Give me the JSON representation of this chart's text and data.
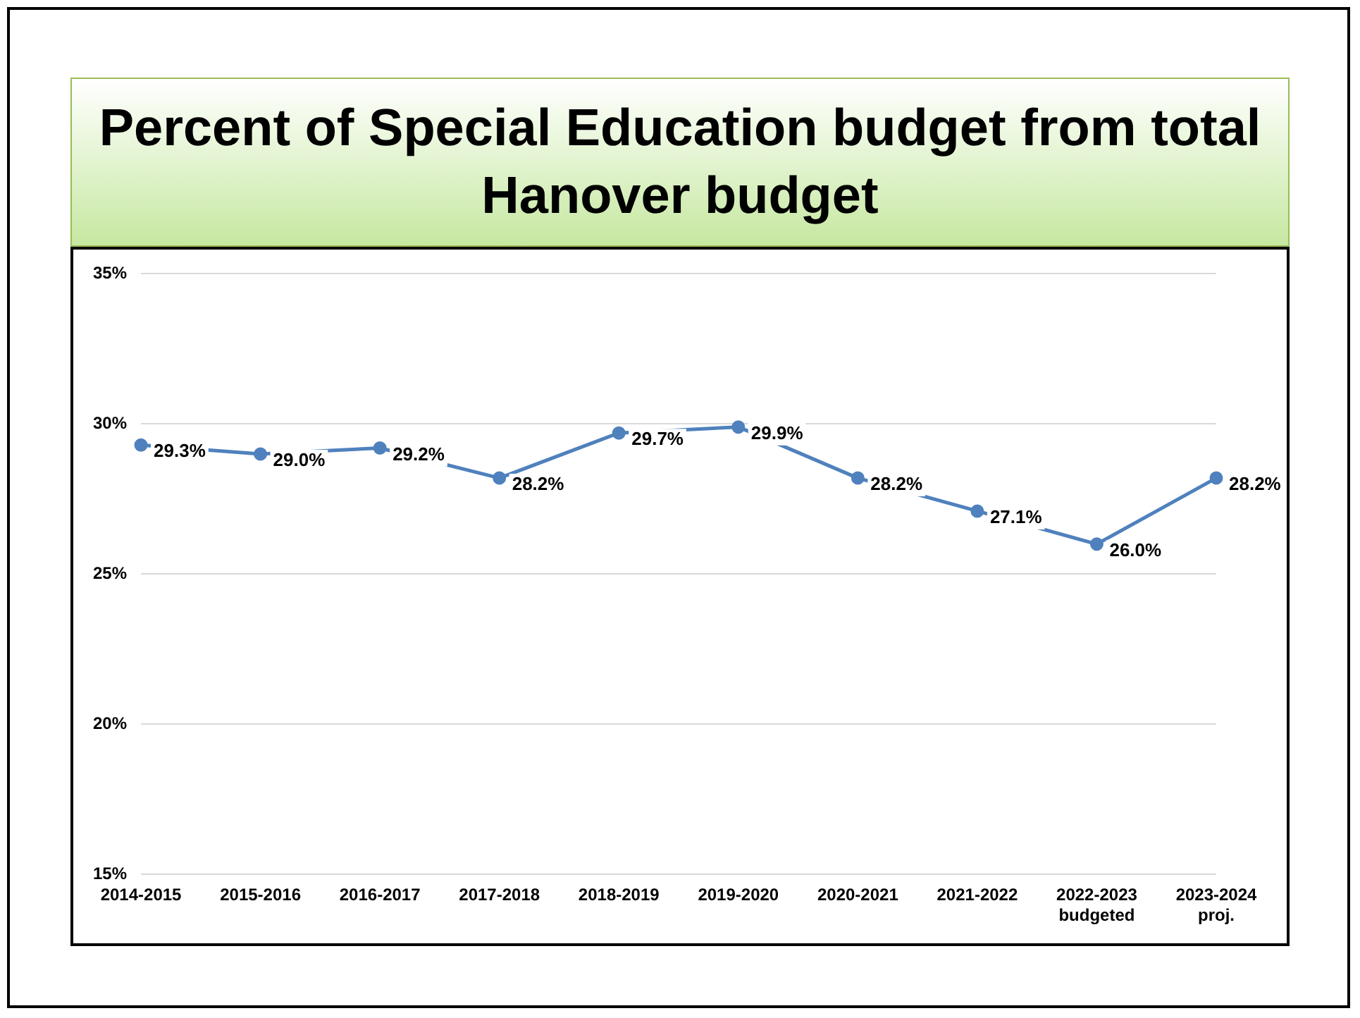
{
  "chart_data": {
    "type": "line",
    "title": "Percent of Special Education budget from total Hanover budget",
    "categories": [
      "2014-2015",
      "2015-2016",
      "2016-2017",
      "2017-2018",
      "2018-2019",
      "2019-2020",
      "2020-2021",
      "2021-2022",
      "2022-2023\nbudgeted",
      "2023-2024\nproj."
    ],
    "series": [
      {
        "color": "#4f81bd",
        "values": [
          29.3,
          29.0,
          29.2,
          28.2,
          29.7,
          29.9,
          28.2,
          27.1,
          26.0,
          28.2
        ],
        "value_labels": [
          "29.3%",
          "29.0%",
          "29.2%",
          "28.2%",
          "29.7%",
          "29.9%",
          "28.2%",
          "27.1%",
          "26.0%",
          "28.2%"
        ]
      }
    ],
    "ylim": [
      15,
      35
    ],
    "yticks": [
      {
        "value": 15,
        "label": "15%"
      },
      {
        "value": 20,
        "label": "20%"
      },
      {
        "value": 25,
        "label": "25%"
      },
      {
        "value": 30,
        "label": "30%"
      },
      {
        "value": 35,
        "label": "35%"
      }
    ],
    "grid": "y",
    "legend": false,
    "marker": "circle",
    "line_style": "solid"
  }
}
